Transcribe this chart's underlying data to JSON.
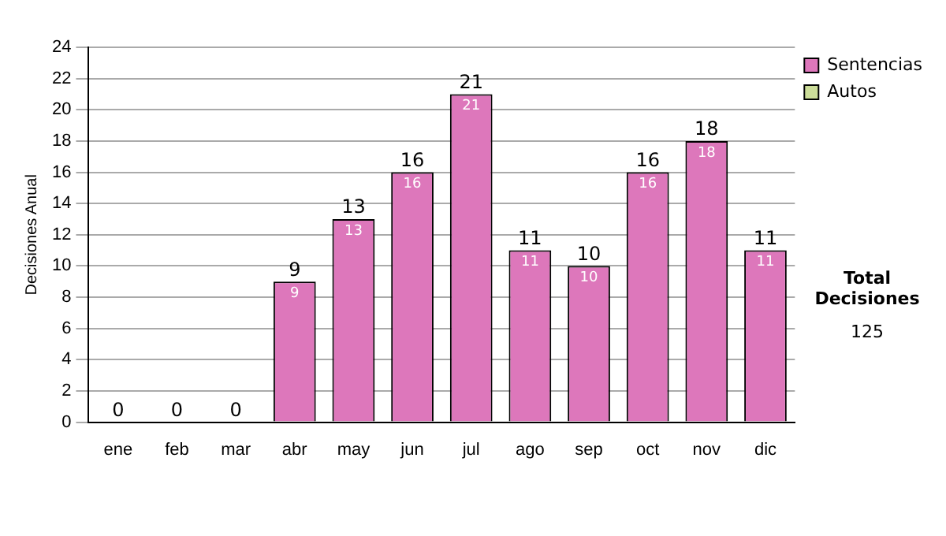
{
  "chart_data": {
    "type": "bar",
    "stacked": true,
    "ylabel": "Decisiones Anual",
    "categories": [
      "ene",
      "feb",
      "mar",
      "abr",
      "may",
      "jun",
      "jul",
      "ago",
      "sep",
      "oct",
      "nov",
      "dic"
    ],
    "series": [
      {
        "name": "Sentencias",
        "color": "#dd77bb",
        "values": [
          0,
          0,
          0,
          9,
          13,
          16,
          21,
          11,
          10,
          16,
          18,
          11
        ],
        "value_labels": [
          null,
          null,
          null,
          "9",
          "13",
          "16",
          "21",
          "11",
          "10",
          "16",
          "18",
          "11"
        ]
      },
      {
        "name": "Autos",
        "color": "#ccdd99",
        "values": [
          0,
          0,
          0,
          0,
          0,
          0,
          0,
          0,
          0,
          0,
          0,
          0
        ]
      }
    ],
    "totals": [
      "0",
      "0",
      "0",
      "9",
      "13",
      "16",
      "21",
      "11",
      "10",
      "16",
      "18",
      "11"
    ],
    "ylim": [
      0,
      24
    ],
    "yticks": [
      0,
      2,
      4,
      6,
      8,
      10,
      12,
      14,
      16,
      18,
      20,
      22,
      24
    ],
    "grid": "y",
    "legend": "right",
    "annotations": [
      "Total Decisiones",
      "125"
    ]
  }
}
